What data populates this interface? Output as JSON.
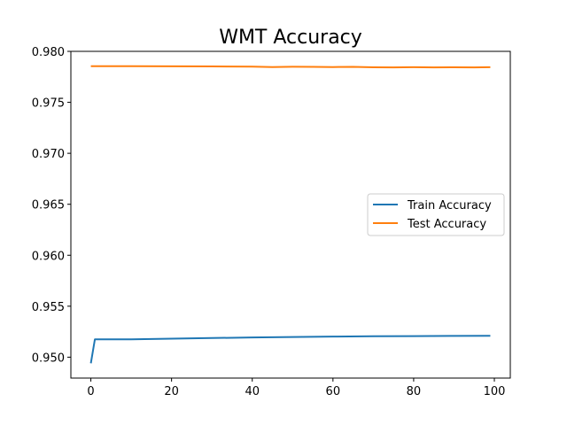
{
  "chart_data": {
    "type": "line",
    "title": "WMT Accuracy",
    "xlabel": "",
    "ylabel": "",
    "xlim": [
      -4.95,
      103.95
    ],
    "ylim": [
      0.94795,
      0.98
    ],
    "xticks": [
      0,
      20,
      40,
      60,
      80,
      100
    ],
    "yticks": [
      0.95,
      0.955,
      0.96,
      0.965,
      0.97,
      0.975,
      0.98
    ],
    "ytick_labels": [
      "0.950",
      "0.955",
      "0.960",
      "0.965",
      "0.970",
      "0.975",
      "0.980"
    ],
    "grid": false,
    "legend_position": "center-right",
    "series": [
      {
        "name": "Train Accuracy",
        "color": "#1f77b4",
        "x": [
          0,
          1,
          10,
          20,
          30,
          40,
          50,
          60,
          70,
          80,
          90,
          99
        ],
        "y": [
          0.9494,
          0.95175,
          0.95175,
          0.95182,
          0.95188,
          0.95193,
          0.95198,
          0.95202,
          0.95205,
          0.95207,
          0.95209,
          0.9521
        ]
      },
      {
        "name": "Test Accuracy",
        "color": "#ff7f0e",
        "x": [
          0,
          10,
          20,
          30,
          40,
          45,
          50,
          55,
          60,
          65,
          70,
          75,
          80,
          85,
          90,
          95,
          99
        ],
        "y": [
          0.97855,
          0.97854,
          0.97853,
          0.97852,
          0.9785,
          0.97846,
          0.97849,
          0.97848,
          0.97846,
          0.97848,
          0.97844,
          0.97843,
          0.97845,
          0.97843,
          0.97844,
          0.97843,
          0.97845
        ]
      }
    ]
  }
}
